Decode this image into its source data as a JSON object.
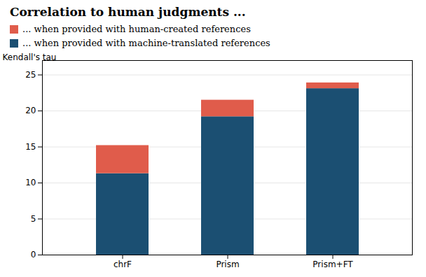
{
  "chart_data": {
    "type": "bar",
    "title": "Correlation to human judgments ...",
    "categories": [
      "chrF",
      "Prism",
      "Prism+FT"
    ],
    "series": [
      {
        "name": "... when provided with machine-translated references",
        "color": "#1b4f72",
        "values": [
          11.3,
          19.2,
          23.1
        ]
      },
      {
        "name": "... when provided with human-created references",
        "color": "#e05c4b",
        "values": [
          3.9,
          2.3,
          0.8
        ]
      }
    ],
    "stacked": true,
    "ylabel": "Kendall's tau",
    "ylim": [
      0,
      27
    ],
    "yticks": [
      0,
      5,
      10,
      15,
      20,
      25
    ],
    "grid": true
  }
}
